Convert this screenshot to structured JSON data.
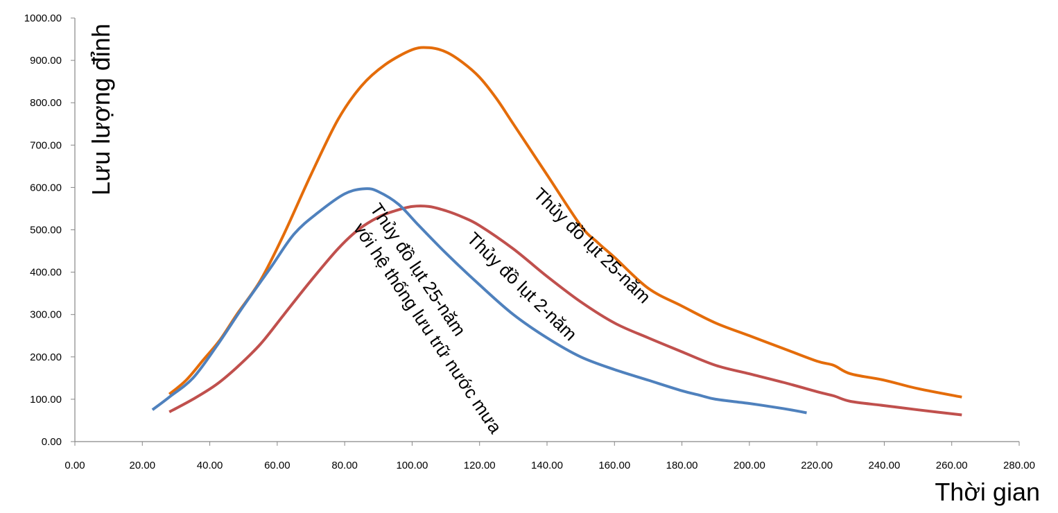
{
  "chart_data": {
    "type": "line",
    "title": "",
    "xlabel": "Thời gian",
    "ylabel": "Lưu lượng đỉnh",
    "xlim": [
      0,
      280
    ],
    "ylim": [
      0,
      1000
    ],
    "xticks": [
      "0.00",
      "20.00",
      "40.00",
      "60.00",
      "80.00",
      "100.00",
      "120.00",
      "140.00",
      "160.00",
      "180.00",
      "200.00",
      "220.00",
      "240.00",
      "260.00",
      "280.00"
    ],
    "yticks": [
      "0.00",
      "100.00",
      "200.00",
      "300.00",
      "400.00",
      "500.00",
      "600.00",
      "700.00",
      "800.00",
      "900.00",
      "1000.00"
    ],
    "grid": false,
    "series": [
      {
        "name": "Thủy đồ lụt 25-năm",
        "color": "#E46C0A",
        "x": [
          28,
          33,
          38,
          43,
          48,
          55,
          62,
          70,
          78,
          85,
          92,
          100,
          105,
          110,
          115,
          120,
          125,
          130,
          140,
          150,
          155,
          160,
          170,
          180,
          190,
          200,
          210,
          220,
          225,
          230,
          240,
          250,
          263
        ],
        "y": [
          112,
          145,
          192,
          240,
          300,
          380,
          490,
          630,
          760,
          840,
          890,
          925,
          930,
          920,
          895,
          860,
          810,
          750,
          630,
          510,
          470,
          435,
          362,
          320,
          280,
          250,
          220,
          190,
          180,
          160,
          145,
          125,
          105
        ]
      },
      {
        "name": "Thủy đồ lụt 2-năm",
        "color": "#C0504D",
        "x": [
          28,
          35,
          42,
          48,
          55,
          62,
          70,
          78,
          84,
          90,
          95,
          100,
          105,
          110,
          115,
          120,
          130,
          140,
          150,
          160,
          170,
          180,
          190,
          200,
          210,
          220,
          225,
          230,
          240,
          250,
          263
        ],
        "y": [
          70,
          100,
          135,
          175,
          230,
          300,
          380,
          455,
          500,
          530,
          545,
          555,
          555,
          545,
          530,
          510,
          455,
          390,
          330,
          280,
          245,
          212,
          180,
          160,
          140,
          118,
          108,
          95,
          85,
          75,
          63
        ]
      },
      {
        "name": "Thủy đồ lụt 25-năm với hệ thống lưu trữ nước mưa",
        "color": "#4F81BD",
        "x": [
          23,
          28,
          35,
          42,
          50,
          58,
          65,
          72,
          80,
          86,
          90,
          96,
          102,
          110,
          120,
          130,
          140,
          150,
          160,
          170,
          180,
          185,
          190,
          200,
          210,
          217
        ],
        "y": [
          75,
          105,
          150,
          225,
          320,
          410,
          490,
          540,
          585,
          597,
          590,
          560,
          510,
          445,
          370,
          300,
          245,
          200,
          170,
          145,
          120,
          110,
          100,
          90,
          78,
          68
        ]
      }
    ],
    "annotations": [
      "Thủy đồ lụt 25-năm",
      "Thủy đồ lụt 2-năm",
      "Thủy đồ lụt 25-năm",
      "với hệ thống lưu trữ nước mưa"
    ]
  }
}
